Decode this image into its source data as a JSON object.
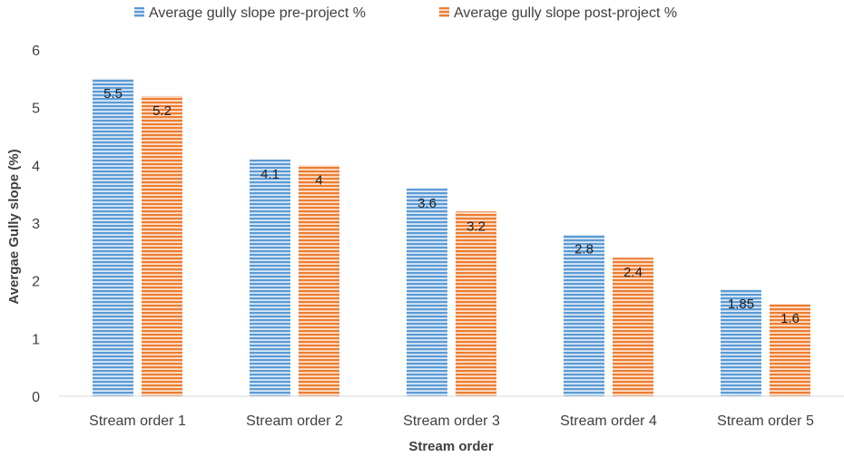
{
  "chart_data": {
    "type": "bar",
    "title": "",
    "xlabel": "Stream order",
    "ylabel": "Avergae Gully slope (%)",
    "categories": [
      "Stream order 1",
      "Stream order 2",
      "Stream order 3",
      "Stream order 4",
      "Stream order 5"
    ],
    "series": [
      {
        "name": "Average gully slope pre-project %",
        "values": [
          5.5,
          4.1,
          3.6,
          2.8,
          1.85
        ],
        "labels": [
          "5.5",
          "4.1",
          "3.6",
          "2.8",
          "1.85"
        ],
        "color": "#5b9bd5"
      },
      {
        "name": "Average gully slope post-project %",
        "values": [
          5.2,
          4,
          3.2,
          2.4,
          1.6
        ],
        "labels": [
          "5.2",
          "4",
          "3.2",
          "2.4",
          "1.6"
        ],
        "color": "#ed7d31"
      }
    ],
    "ylim": [
      0,
      6
    ],
    "yticks": [
      "0",
      "1",
      "2",
      "3",
      "4",
      "5",
      "6"
    ],
    "legend_position": "top",
    "grid": false,
    "bar_pattern": "horizontal-stripes"
  }
}
